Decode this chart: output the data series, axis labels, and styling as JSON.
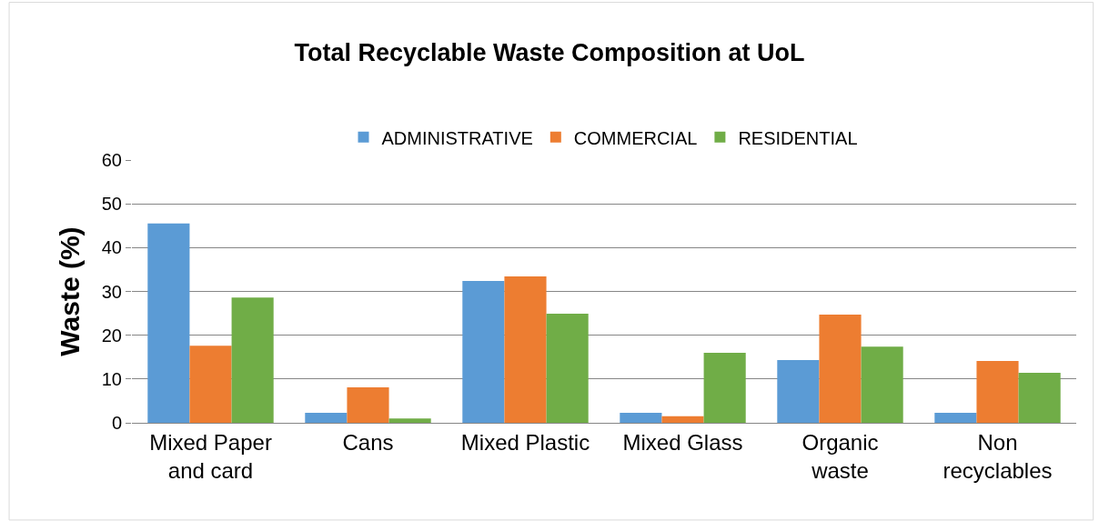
{
  "chart_data": {
    "type": "bar",
    "title": "Total Recyclable Waste Composition at UoL",
    "ylabel": "Waste (%)",
    "categories": [
      "Mixed Paper\nand card",
      "Cans",
      "Mixed Plastic",
      "Mixed Glass",
      "Organic\nwaste",
      "Non\nrecyclables"
    ],
    "series": [
      {
        "name": "ADMINISTRATIVE",
        "color": "#5b9bd5",
        "values": [
          45.5,
          2.3,
          32.4,
          2.3,
          14.3,
          2.3
        ]
      },
      {
        "name": "COMMERCIAL",
        "color": "#ed7d31",
        "values": [
          17.6,
          8.1,
          33.4,
          1.5,
          24.7,
          14.1
        ]
      },
      {
        "name": "RESIDENTIAL",
        "color": "#70ad47",
        "values": [
          28.6,
          1.0,
          24.9,
          16.0,
          17.4,
          11.4
        ]
      }
    ],
    "ylim": [
      0,
      60
    ],
    "yticks": [
      0,
      10,
      20,
      30,
      40,
      50,
      60
    ],
    "grid": "y",
    "legend": "top"
  }
}
